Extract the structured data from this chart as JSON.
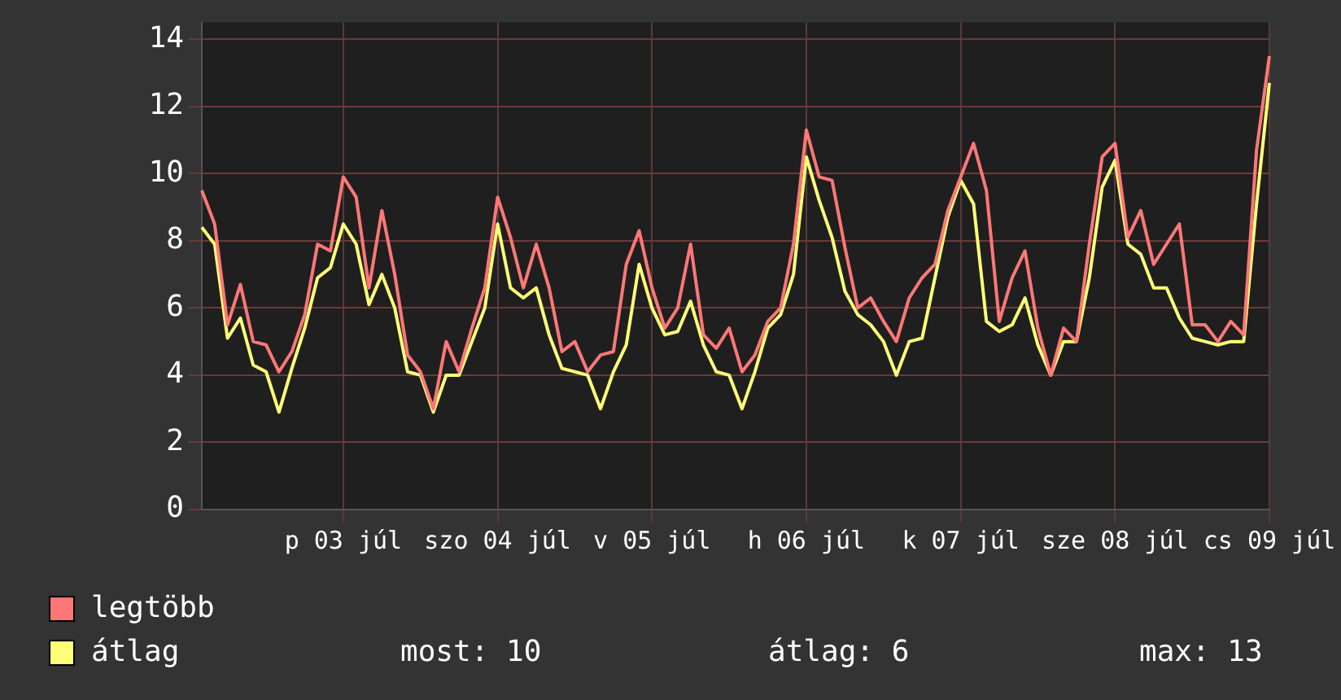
{
  "chart_data": {
    "type": "line",
    "categories": [
      null,
      null,
      null,
      null,
      null,
      null,
      null,
      null,
      null,
      null,
      null,
      "p 03 júl",
      null,
      null,
      null,
      null,
      null,
      null,
      null,
      null,
      null,
      null,
      null,
      "szo 04 júl",
      null,
      null,
      null,
      null,
      null,
      null,
      null,
      null,
      null,
      null,
      null,
      "v 05 júl",
      null,
      null,
      null,
      null,
      null,
      null,
      null,
      null,
      null,
      null,
      null,
      "h 06 júl",
      null,
      null,
      null,
      null,
      null,
      null,
      null,
      null,
      null,
      null,
      null,
      "k 07 júl",
      null,
      null,
      null,
      null,
      null,
      null,
      null,
      null,
      null,
      null,
      null,
      "sze 08 júl",
      null,
      null,
      null,
      null,
      null,
      null,
      null,
      null,
      null,
      null,
      null,
      "cs 09 júl"
    ],
    "ylim": [
      0,
      14.5
    ],
    "yticks": [
      0,
      2,
      4,
      6,
      8,
      10,
      12,
      14
    ],
    "grid": true,
    "legend": "bottom",
    "marker": "none",
    "line_style": "solid",
    "series": [
      {
        "name": "legtöbb",
        "color": "#ff7777",
        "values": [
          9.5,
          8.5,
          5.5,
          6.7,
          5.0,
          4.9,
          4.1,
          4.7,
          5.8,
          7.9,
          7.7,
          9.9,
          9.3,
          6.6,
          8.9,
          7.0,
          4.6,
          4.1,
          3.0,
          5.0,
          4.1,
          5.4,
          6.6,
          9.3,
          8.1,
          6.6,
          7.9,
          6.6,
          4.7,
          5.0,
          4.1,
          4.6,
          4.7,
          7.3,
          8.3,
          6.6,
          5.4,
          6.0,
          7.9,
          5.2,
          4.8,
          5.4,
          4.1,
          4.6,
          5.6,
          6.0,
          7.9,
          11.3,
          9.9,
          9.8,
          7.8,
          6.0,
          6.3,
          5.6,
          5.0,
          6.3,
          6.9,
          7.3,
          8.9,
          9.9,
          10.9,
          9.5,
          5.6,
          6.9,
          7.7,
          5.4,
          4.0,
          5.4,
          5.0,
          7.9,
          10.5,
          10.9,
          8.1,
          8.9,
          7.3,
          7.9,
          8.5,
          5.5,
          5.5,
          5.0,
          5.6,
          5.2,
          10.7,
          13.5
        ]
      },
      {
        "name": "átlag",
        "color": "#ffff77",
        "values": [
          8.4,
          7.9,
          5.1,
          5.7,
          4.3,
          4.1,
          2.9,
          4.2,
          5.4,
          6.9,
          7.2,
          8.5,
          7.9,
          6.1,
          7.0,
          6.0,
          4.1,
          4.0,
          2.9,
          4.0,
          4.0,
          5.0,
          6.0,
          8.5,
          6.6,
          6.3,
          6.6,
          5.2,
          4.2,
          4.1,
          4.0,
          3.0,
          4.1,
          4.9,
          7.3,
          6.0,
          5.2,
          5.3,
          6.2,
          4.9,
          4.1,
          4.0,
          3.0,
          4.1,
          5.4,
          5.8,
          7.0,
          10.5,
          9.2,
          8.1,
          6.5,
          5.8,
          5.5,
          5.0,
          4.0,
          5.0,
          5.1,
          6.9,
          8.7,
          9.8,
          9.1,
          5.6,
          5.3,
          5.5,
          6.3,
          4.9,
          4.0,
          5.0,
          5.0,
          6.9,
          9.6,
          10.4,
          7.9,
          7.6,
          6.6,
          6.6,
          5.7,
          5.1,
          5.0,
          4.9,
          5.0,
          5.0,
          9.1,
          12.7
        ]
      }
    ],
    "annotations": [
      "most: 10",
      "átlag: 6",
      "max: 13"
    ]
  }
}
